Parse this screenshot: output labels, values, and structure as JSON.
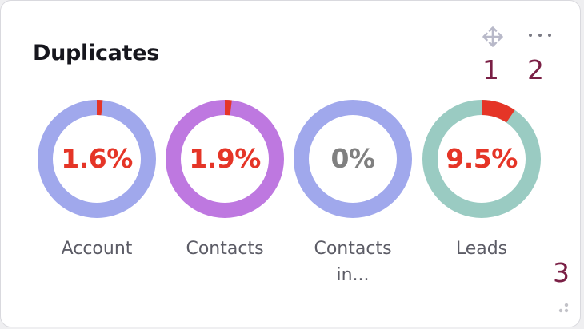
{
  "widget": {
    "title": "Duplicates",
    "move_icon": "move-icon",
    "more_icon": "more-horizontal-icon",
    "resize_icon": "resize-grip-icon"
  },
  "annotations": [
    "1",
    "2",
    "3"
  ],
  "colors": {
    "highlight": "#e53527",
    "muted_text": "#808080",
    "label_text": "#5c5c66"
  },
  "donuts": [
    {
      "label": "Account",
      "label_line2": "",
      "percent": "1.6%",
      "value": 0.016,
      "ring_color": "#a0a8ec",
      "text_color": "#e53527"
    },
    {
      "label": "Contacts",
      "label_line2": "",
      "percent": "1.9%",
      "value": 0.019,
      "ring_color": "#be78e0",
      "text_color": "#e53527"
    },
    {
      "label": "Contacts",
      "label_line2": "in...",
      "percent": "0%",
      "value": 0.0,
      "ring_color": "#a0a8ec",
      "text_color": "#808080"
    },
    {
      "label": "Leads",
      "label_line2": "",
      "percent": "9.5%",
      "value": 0.095,
      "ring_color": "#9acbc2",
      "text_color": "#e53527"
    }
  ]
}
